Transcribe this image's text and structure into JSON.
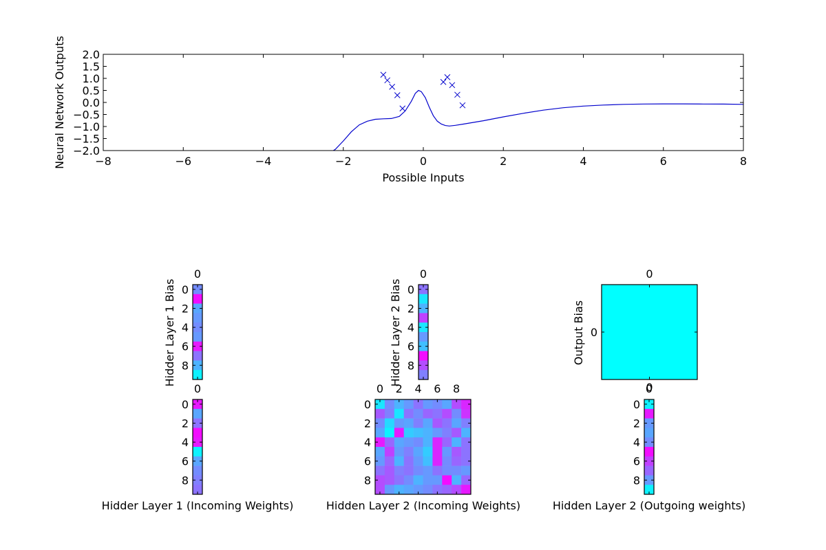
{
  "chart_data": [
    {
      "type": "line",
      "title": "",
      "xlabel": "Possible Inputs",
      "ylabel": "Neural Network Outputs",
      "xlim": [
        -8,
        8
      ],
      "ylim": [
        -2,
        2
      ],
      "x_ticks": [
        -8,
        -6,
        -4,
        -2,
        0,
        2,
        4,
        6,
        8
      ],
      "x_tick_labels": [
        "−8",
        "−6",
        "−4",
        "−2",
        "0",
        "2",
        "4",
        "6",
        "8"
      ],
      "y_ticks": [
        2.0,
        1.5,
        1.0,
        0.5,
        0.0,
        -0.5,
        -1.0,
        -1.5,
        -2.0
      ],
      "y_tick_labels": [
        "2.0",
        "1.5",
        "1.0",
        "0.5",
        "0.0",
        "−0.5",
        "−1.0",
        "−1.5",
        "−2.0"
      ],
      "grid": false,
      "line_color": "#0000cc",
      "series": [
        {
          "kind": "line",
          "points": [
            [
              -8,
              -2.4
            ],
            [
              -2.3,
              -2.05
            ],
            [
              -2.2,
              -1.95
            ],
            [
              -2.0,
              -1.6
            ],
            [
              -1.8,
              -1.22
            ],
            [
              -1.6,
              -0.93
            ],
            [
              -1.4,
              -0.78
            ],
            [
              -1.2,
              -0.7
            ],
            [
              -1.0,
              -0.68
            ],
            [
              -0.8,
              -0.67
            ],
            [
              -0.6,
              -0.58
            ],
            [
              -0.45,
              -0.35
            ],
            [
              -0.3,
              0.05
            ],
            [
              -0.2,
              0.38
            ],
            [
              -0.12,
              0.5
            ],
            [
              -0.05,
              0.45
            ],
            [
              0.05,
              0.2
            ],
            [
              0.15,
              -0.2
            ],
            [
              0.25,
              -0.55
            ],
            [
              0.35,
              -0.78
            ],
            [
              0.45,
              -0.9
            ],
            [
              0.55,
              -0.96
            ],
            [
              0.65,
              -0.98
            ],
            [
              0.8,
              -0.95
            ],
            [
              1.0,
              -0.9
            ],
            [
              1.5,
              -0.76
            ],
            [
              2.0,
              -0.6
            ],
            [
              2.5,
              -0.45
            ],
            [
              3.0,
              -0.32
            ],
            [
              3.5,
              -0.22
            ],
            [
              4.0,
              -0.15
            ],
            [
              4.5,
              -0.11
            ],
            [
              5.0,
              -0.08
            ],
            [
              5.5,
              -0.065
            ],
            [
              6.0,
              -0.06
            ],
            [
              6.5,
              -0.06
            ],
            [
              7.0,
              -0.065
            ],
            [
              7.5,
              -0.07
            ],
            [
              8.0,
              -0.08
            ]
          ]
        },
        {
          "kind": "scatter",
          "marker": "x",
          "points": [
            [
              -1.0,
              1.15
            ],
            [
              -0.9,
              0.92
            ],
            [
              -0.78,
              0.65
            ],
            [
              -0.65,
              0.3
            ],
            [
              -0.52,
              -0.25
            ],
            [
              0.5,
              0.85
            ],
            [
              0.6,
              1.05
            ],
            [
              0.72,
              0.72
            ],
            [
              0.85,
              0.32
            ],
            [
              0.98,
              -0.12
            ]
          ]
        }
      ]
    },
    {
      "type": "heatmap",
      "ylabel": "Hidder Layer 1 Bias",
      "xlabel": "",
      "x_tick_labels": [
        "0"
      ],
      "y_tick_labels": [
        "0",
        "2",
        "4",
        "6",
        "8"
      ],
      "colormap": "cool",
      "rows": 10,
      "cols": 1,
      "values": [
        [
          0.45
        ],
        [
          0.95
        ],
        [
          0.35
        ],
        [
          0.4
        ],
        [
          0.45
        ],
        [
          0.4
        ],
        [
          0.9
        ],
        [
          0.55
        ],
        [
          0.3
        ],
        [
          0.05
        ]
      ]
    },
    {
      "type": "heatmap",
      "ylabel": "Hidder Layer 2 Bias",
      "xlabel": "",
      "x_tick_labels": [
        "0"
      ],
      "y_tick_labels": [
        "0",
        "2",
        "4",
        "6",
        "8"
      ],
      "colormap": "cool",
      "rows": 10,
      "cols": 1,
      "values": [
        [
          0.55
        ],
        [
          0.1
        ],
        [
          0.3
        ],
        [
          0.75
        ],
        [
          0.1
        ],
        [
          0.4
        ],
        [
          0.25
        ],
        [
          0.95
        ],
        [
          0.7
        ],
        [
          0.5
        ]
      ]
    },
    {
      "type": "heatmap",
      "ylabel": "Output Bias",
      "xlabel": "",
      "x_tick_labels": [
        "0"
      ],
      "x_tick_labels_bottom": [
        "0"
      ],
      "y_tick_labels": [
        "0"
      ],
      "colormap": "cool",
      "rows": 1,
      "cols": 1,
      "values": [
        [
          0.0
        ]
      ]
    },
    {
      "type": "heatmap",
      "ylabel": "",
      "xlabel": "Hidder Layer 1 (Incoming Weights)",
      "x_tick_labels": [
        "0"
      ],
      "y_tick_labels": [
        "0",
        "2",
        "4",
        "6",
        "8"
      ],
      "colormap": "cool",
      "rows": 10,
      "cols": 1,
      "values": [
        [
          0.9
        ],
        [
          0.35
        ],
        [
          0.55
        ],
        [
          0.95
        ],
        [
          0.9
        ],
        [
          0.05
        ],
        [
          0.35
        ],
        [
          0.45
        ],
        [
          0.5
        ],
        [
          0.55
        ]
      ]
    },
    {
      "type": "heatmap",
      "ylabel": "",
      "xlabel": "Hidden Layer 2 (Incoming Weights)",
      "x_tick_labels": [
        "0",
        "2",
        "4",
        "6",
        "8"
      ],
      "y_tick_labels": [
        "0",
        "2",
        "4",
        "6",
        "8"
      ],
      "colormap": "cool",
      "rows": 10,
      "cols": 10,
      "values": [
        [
          0.1,
          0.45,
          0.3,
          0.4,
          0.55,
          0.4,
          0.45,
          0.35,
          0.7,
          0.85
        ],
        [
          0.65,
          0.5,
          0.1,
          0.55,
          0.45,
          0.6,
          0.55,
          0.7,
          0.45,
          0.8
        ],
        [
          0.45,
          0.15,
          0.4,
          0.35,
          0.5,
          0.35,
          0.65,
          0.55,
          0.35,
          0.5
        ],
        [
          0.35,
          0.05,
          0.9,
          0.2,
          0.25,
          0.3,
          0.4,
          0.5,
          0.65,
          0.3
        ],
        [
          0.9,
          0.6,
          0.35,
          0.4,
          0.45,
          0.3,
          0.85,
          0.6,
          0.3,
          0.55
        ],
        [
          0.35,
          0.75,
          0.4,
          0.5,
          0.35,
          0.2,
          0.85,
          0.4,
          0.65,
          0.55
        ],
        [
          0.4,
          0.6,
          0.3,
          0.55,
          0.4,
          0.25,
          0.85,
          0.45,
          0.6,
          0.55
        ],
        [
          0.55,
          0.65,
          0.5,
          0.55,
          0.45,
          0.4,
          0.55,
          0.45,
          0.45,
          0.4
        ],
        [
          0.7,
          0.65,
          0.55,
          0.45,
          0.3,
          0.4,
          0.4,
          0.95,
          0.3,
          0.6
        ],
        [
          0.7,
          0.4,
          0.3,
          0.35,
          0.4,
          0.45,
          0.55,
          0.6,
          0.7,
          0.9
        ]
      ]
    },
    {
      "type": "heatmap",
      "ylabel": "",
      "xlabel": "Hidden Layer 2 (Outgoing weights)",
      "x_tick_labels": [
        "0"
      ],
      "y_tick_labels": [
        "0",
        "2",
        "4",
        "6",
        "8"
      ],
      "colormap": "cool",
      "rows": 10,
      "cols": 1,
      "values": [
        [
          0.05
        ],
        [
          0.9
        ],
        [
          0.4
        ],
        [
          0.35
        ],
        [
          0.45
        ],
        [
          0.95
        ],
        [
          0.75
        ],
        [
          0.6
        ],
        [
          0.4
        ],
        [
          0.05
        ]
      ]
    }
  ]
}
